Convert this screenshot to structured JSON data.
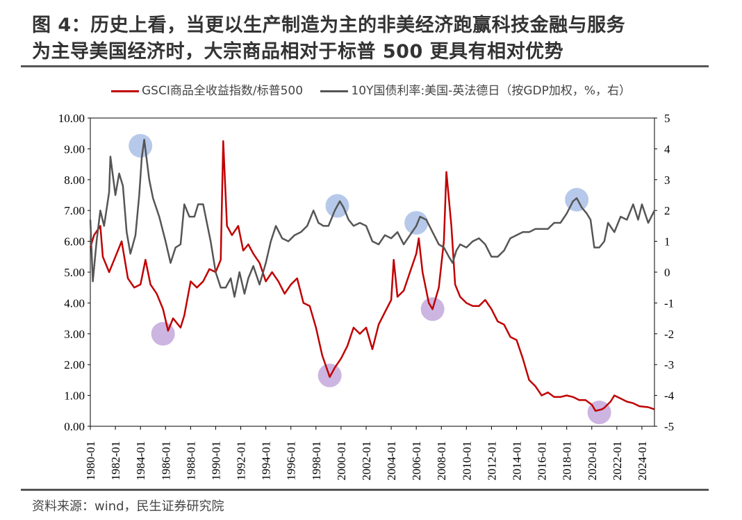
{
  "title_line1": "图 4：历史上看，当更以生产制造为主的非美经济跑赢科技金融与服务",
  "title_line2": "为主导美国经济时，大宗商品相对于标普 500 更具有相对优势",
  "source": "资料来源：wind，民生证券研究院",
  "chart_data": {
    "type": "line",
    "legend_position": "top",
    "grid": false,
    "x_ticks": [
      "1980-01",
      "1982-01",
      "1984-01",
      "1986-01",
      "1988-01",
      "1990-01",
      "1992-01",
      "1994-01",
      "1996-01",
      "1998-01",
      "2000-01",
      "2002-01",
      "2004-01",
      "2006-01",
      "2008-01",
      "2010-01",
      "2012-01",
      "2014-01",
      "2016-01",
      "2018-01",
      "2020-01",
      "2022-01",
      "2024-01"
    ],
    "xlim": [
      1980,
      2025
    ],
    "y_left": {
      "lim": [
        0,
        10
      ],
      "ticks": [
        "0.00",
        "1.00",
        "2.00",
        "3.00",
        "4.00",
        "5.00",
        "6.00",
        "7.00",
        "8.00",
        "9.00",
        "10.00"
      ]
    },
    "y_right": {
      "lim": [
        -5,
        5
      ],
      "ticks": [
        "-5",
        "-4",
        "-3",
        "-2",
        "-1",
        "0",
        "1",
        "2",
        "3",
        "4",
        "5"
      ]
    },
    "series": [
      {
        "name": "GSCI商品全收益指数/标普500",
        "axis": "left",
        "color": "#c00000",
        "x": [
          1980,
          1980.3,
          1980.8,
          1981,
          1981.5,
          1982,
          1982.5,
          1983,
          1983.5,
          1984,
          1984.4,
          1984.8,
          1985.3,
          1985.8,
          1986.2,
          1986.6,
          1987.2,
          1987.5,
          1988,
          1988.5,
          1989,
          1989.5,
          1990,
          1990.4,
          1990.6,
          1990.9,
          1991.3,
          1991.8,
          1992.2,
          1992.6,
          1993,
          1993.5,
          1994,
          1994.5,
          1995,
          1995.5,
          1996,
          1996.5,
          1997,
          1997.5,
          1998,
          1998.5,
          1999.1,
          1999.5,
          2000,
          2000.5,
          2001,
          2001.5,
          2002,
          2002.5,
          2003,
          2003.5,
          2004,
          2004.2,
          2004.5,
          2005,
          2005.5,
          2006,
          2006.2,
          2006.5,
          2007,
          2007.3,
          2007.8,
          2008.2,
          2008.4,
          2008.8,
          2009.1,
          2009.5,
          2010,
          2010.5,
          2011,
          2011.5,
          2012,
          2012.5,
          2013,
          2013.5,
          2014,
          2014.5,
          2015,
          2015.5,
          2016,
          2016.5,
          2017,
          2017.5,
          2018,
          2018.5,
          2019,
          2019.5,
          2020,
          2020.3,
          2020.8,
          2021,
          2021.5,
          2021.8,
          2022.3,
          2022.8,
          2023.3,
          2023.8,
          2024.5,
          2025
        ],
        "y": [
          5.8,
          6.2,
          6.5,
          5.5,
          5.0,
          5.5,
          6.0,
          4.8,
          4.5,
          4.6,
          5.4,
          4.6,
          4.3,
          3.8,
          3.1,
          3.5,
          3.2,
          3.6,
          4.7,
          4.5,
          4.7,
          5.1,
          5.0,
          5.4,
          9.25,
          6.5,
          6.2,
          6.5,
          5.7,
          5.9,
          5.6,
          5.3,
          4.7,
          5.0,
          4.7,
          4.3,
          4.6,
          4.8,
          4.0,
          3.9,
          3.2,
          2.3,
          1.6,
          1.9,
          2.2,
          2.6,
          3.2,
          3.0,
          3.2,
          2.5,
          3.3,
          3.7,
          4.1,
          5.4,
          4.2,
          4.4,
          5.0,
          5.6,
          6.1,
          5.0,
          4.0,
          3.8,
          4.5,
          6.0,
          8.25,
          6.5,
          4.6,
          4.2,
          4.0,
          3.9,
          3.9,
          4.1,
          3.8,
          3.4,
          3.3,
          2.9,
          2.8,
          2.2,
          1.5,
          1.3,
          1.0,
          1.1,
          0.95,
          0.95,
          1.0,
          0.95,
          0.85,
          0.85,
          0.7,
          0.5,
          0.55,
          0.6,
          0.8,
          1.0,
          0.9,
          0.8,
          0.75,
          0.65,
          0.62,
          0.55
        ]
      },
      {
        "name": "10Y国债利率:美国-英法德日（按GDP加权，%，右）",
        "axis": "right",
        "color": "#555555",
        "x": [
          1980,
          1980.2,
          1980.5,
          1980.8,
          1981.1,
          1981.5,
          1981.6,
          1982,
          1982.3,
          1982.6,
          1982.9,
          1983.2,
          1983.6,
          1983.9,
          1984.1,
          1984.3,
          1984.7,
          1985,
          1985.5,
          1986,
          1986.4,
          1986.8,
          1987.2,
          1987.5,
          1987.9,
          1988.3,
          1988.6,
          1989,
          1989.3,
          1989.6,
          1990,
          1990.4,
          1990.8,
          1991.2,
          1991.5,
          1991.9,
          1992.3,
          1992.6,
          1993,
          1993.5,
          1994,
          1994.4,
          1994.8,
          1995.3,
          1995.8,
          1996.3,
          1996.8,
          1997.3,
          1997.8,
          1998.2,
          1998.6,
          1999,
          1999.5,
          1999.9,
          2000.2,
          2000.6,
          2001,
          2001.5,
          2002,
          2002.5,
          2003,
          2003.5,
          2004,
          2004.5,
          2005,
          2005.5,
          2006,
          2006.3,
          2006.8,
          2007.3,
          2007.8,
          2008.2,
          2008.6,
          2008.9,
          2009.2,
          2009.5,
          2010,
          2010.5,
          2011,
          2011.5,
          2012,
          2012.5,
          2013,
          2013.5,
          2014,
          2014.5,
          2015,
          2015.5,
          2016,
          2016.5,
          2017,
          2017.5,
          2018,
          2018.5,
          2018.8,
          2019.2,
          2019.6,
          2019.9,
          2020.2,
          2020.6,
          2021,
          2021.3,
          2021.8,
          2022.3,
          2022.8,
          2023.3,
          2023.7,
          2024,
          2024.5,
          2025
        ],
        "y": [
          1.7,
          -0.3,
          1.0,
          2.0,
          1.5,
          2.6,
          3.75,
          2.5,
          3.2,
          2.8,
          1.3,
          0.6,
          1.2,
          2.5,
          3.7,
          4.3,
          3.0,
          2.4,
          1.8,
          1.0,
          0.3,
          0.8,
          0.9,
          2.2,
          1.8,
          1.8,
          2.2,
          2.2,
          1.6,
          1.0,
          0,
          -0.5,
          -0.5,
          -0.2,
          -0.8,
          0.0,
          -0.7,
          -0.2,
          0.2,
          -0.4,
          0.3,
          1.0,
          1.5,
          1.1,
          1.0,
          1.2,
          1.3,
          1.5,
          2.0,
          1.6,
          1.5,
          1.5,
          2.0,
          2.3,
          2.1,
          1.7,
          1.5,
          1.6,
          1.5,
          1.0,
          0.9,
          1.2,
          1.1,
          1.3,
          0.9,
          1.2,
          1.5,
          1.8,
          1.7,
          1.3,
          0.9,
          0.8,
          0.5,
          0.3,
          0.7,
          0.9,
          0.8,
          1.0,
          1.1,
          0.9,
          0.5,
          0.5,
          0.7,
          1.1,
          1.2,
          1.3,
          1.3,
          1.4,
          1.4,
          1.4,
          1.6,
          1.6,
          1.9,
          2.3,
          2.4,
          2.1,
          1.9,
          1.7,
          0.8,
          0.8,
          1.0,
          1.6,
          1.3,
          1.8,
          1.7,
          2.2,
          1.7,
          2.2,
          1.6,
          2.0
        ]
      }
    ],
    "highlights": [
      {
        "x": 1984.0,
        "y": 9.1,
        "color": "#a9bfe6"
      },
      {
        "x": 1999.7,
        "y": 7.15,
        "color": "#a9bfe6"
      },
      {
        "x": 2006.0,
        "y": 6.6,
        "color": "#a9bfe6"
      },
      {
        "x": 2018.8,
        "y": 7.35,
        "color": "#a9bfe6"
      },
      {
        "x": 1985.8,
        "y": 3.0,
        "color": "#c3a8dc"
      },
      {
        "x": 1999.1,
        "y": 1.65,
        "color": "#c3a8dc"
      },
      {
        "x": 2007.3,
        "y": 3.8,
        "color": "#c3a8dc"
      },
      {
        "x": 2020.6,
        "y": 0.45,
        "color": "#c3a8dc"
      }
    ]
  }
}
